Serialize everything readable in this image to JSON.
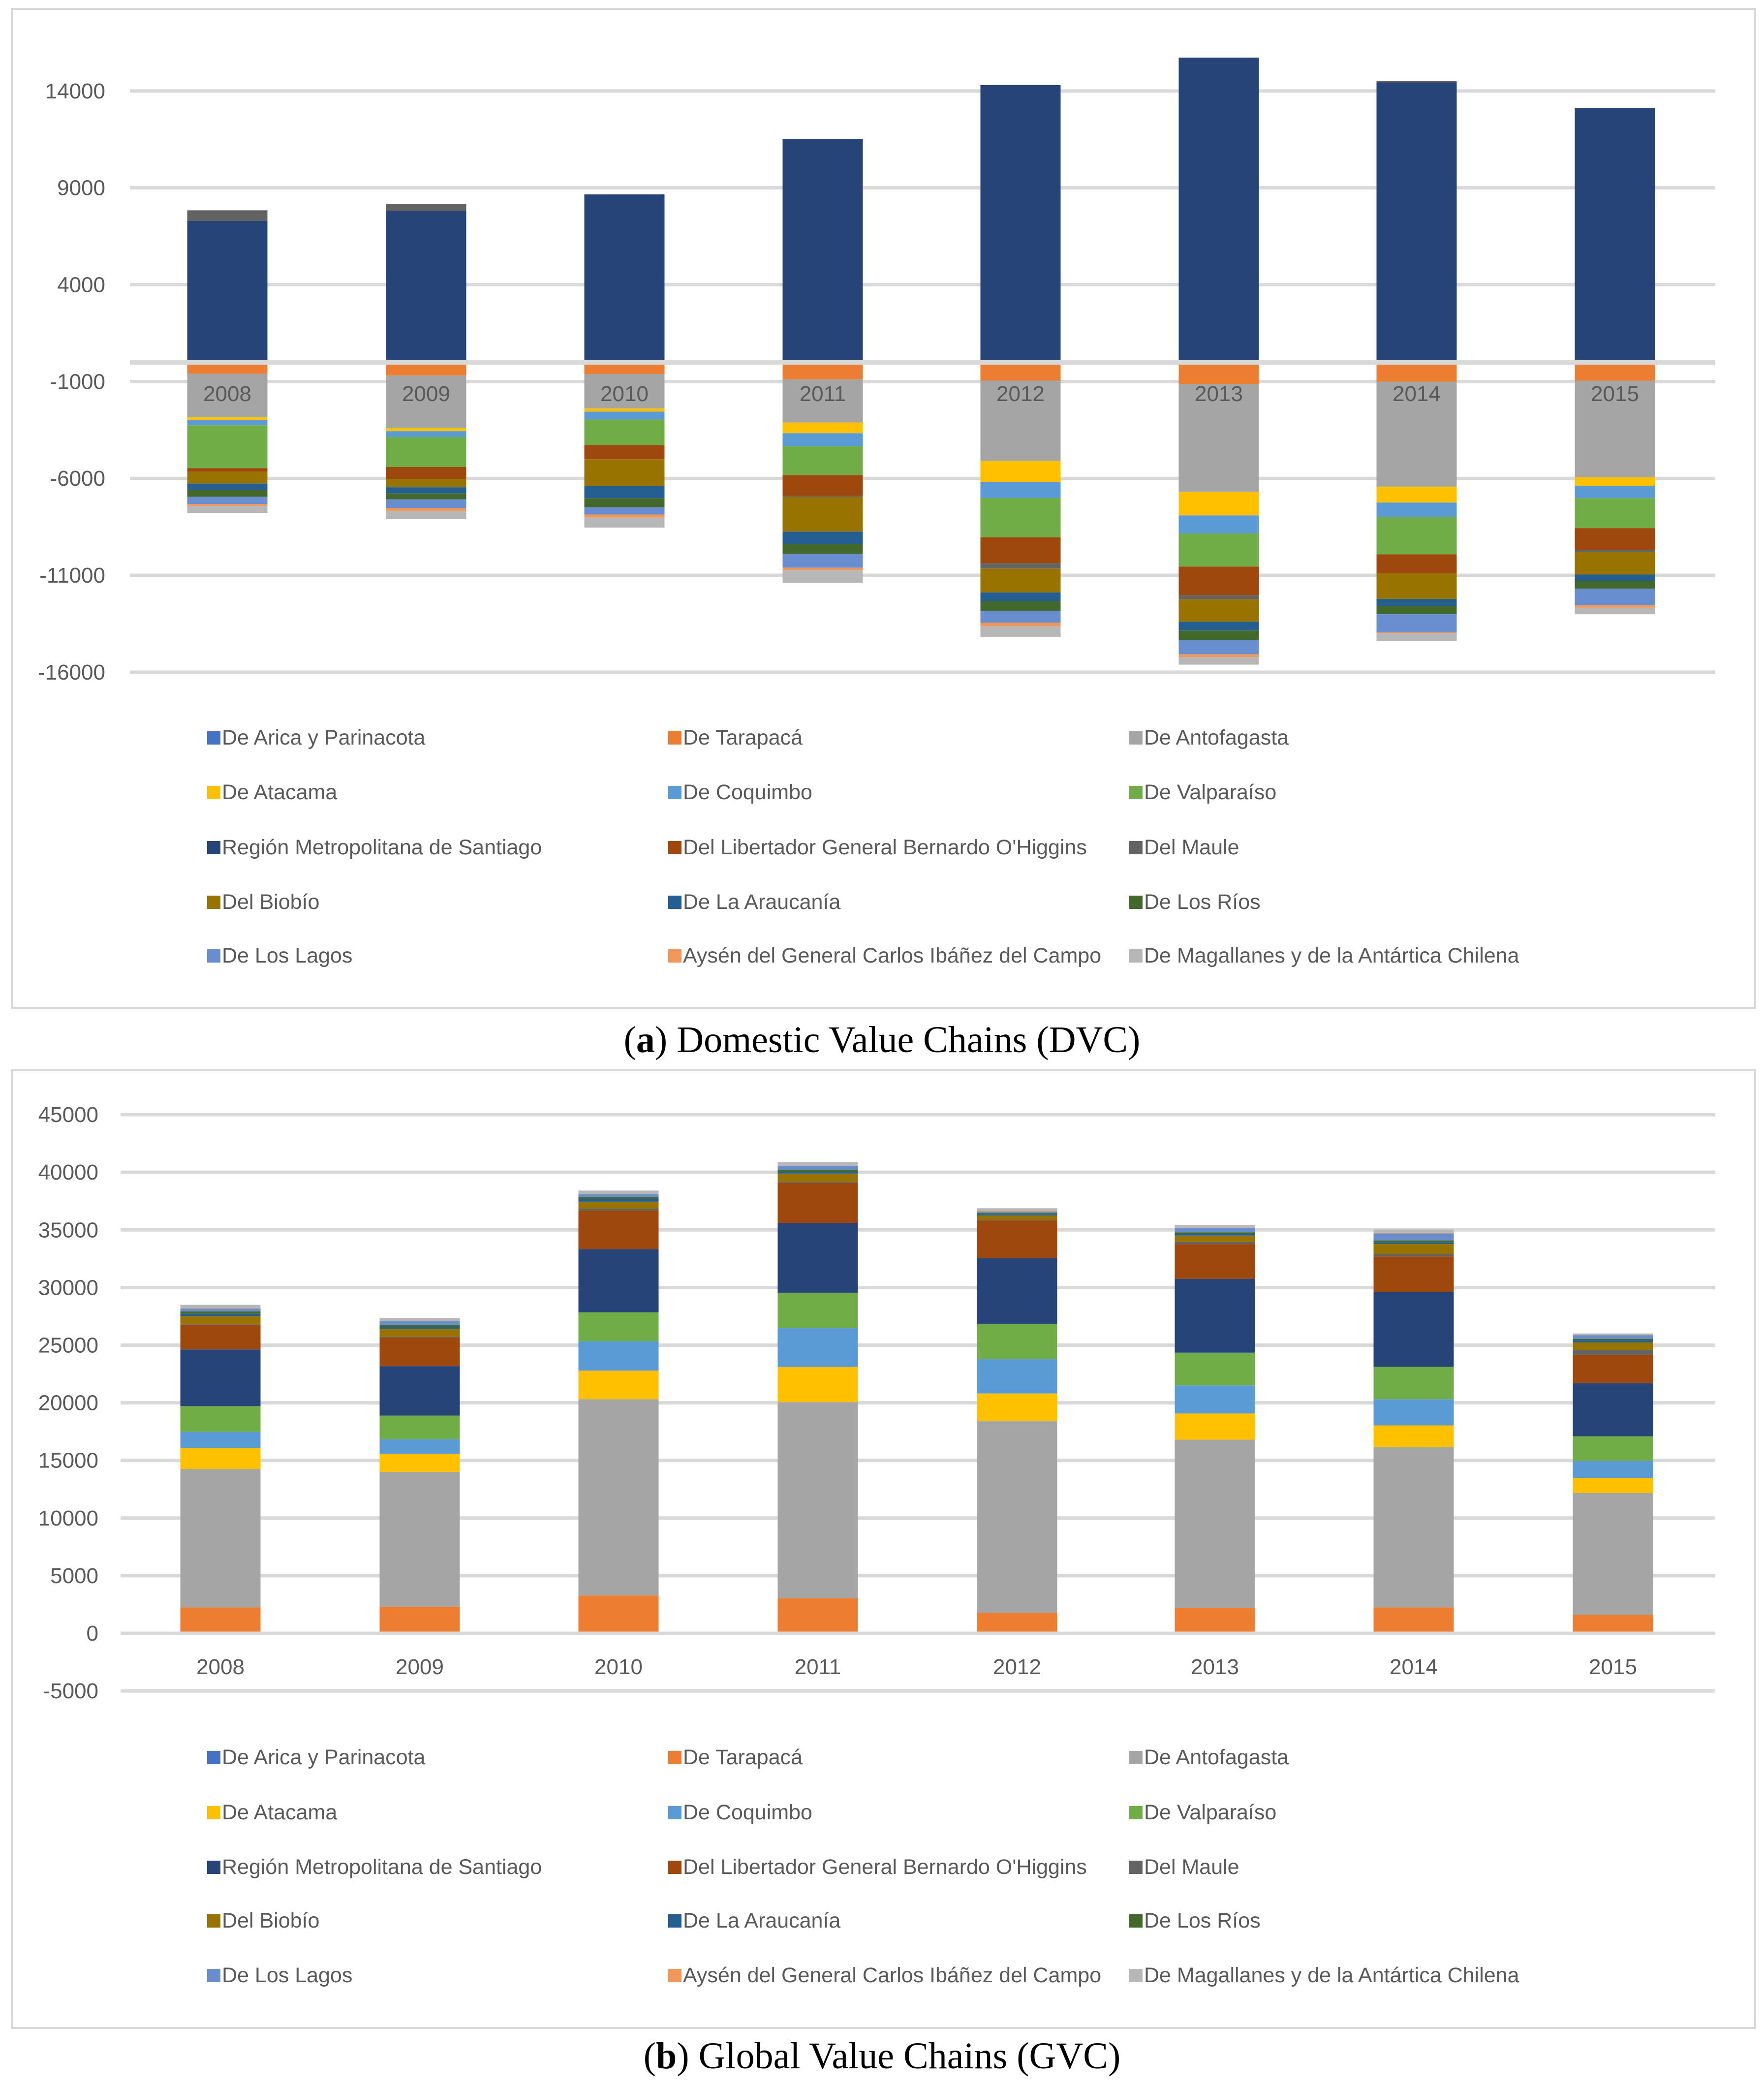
{
  "series_names": [
    "De Arica y Parinacota",
    "De Tarapacá",
    "De Antofagasta",
    "De Atacama",
    "De Coquimbo",
    "De Valparaíso",
    "Región Metropolitana de Santiago",
    "Del Libertador General Bernardo O'Higgins",
    "Del Maule",
    "Del Biobío",
    "De La Araucanía",
    "De Los Ríos",
    "De Los Lagos",
    "Aysén del General Carlos Ibáñez del Campo",
    "De Magallanes y de la Antártica Chilena"
  ],
  "series_colors": [
    "#4472C4",
    "#ED7D31",
    "#A5A5A5",
    "#FFC000",
    "#5B9BD5",
    "#70AD47",
    "#264478",
    "#9E480E",
    "#636363",
    "#997300",
    "#255E91",
    "#43682B",
    "#698ED0",
    "#F1975A",
    "#B7B7B7"
  ],
  "chart_data": [
    {
      "type": "bar",
      "stacked": true,
      "caption_label": "a",
      "caption_text": "Domestic Value Chains (DVC)",
      "categories": [
        "2008",
        "2009",
        "2010",
        "2011",
        "2012",
        "2013",
        "2014",
        "2015"
      ],
      "yticks": [
        14000,
        9000,
        4000,
        -1000,
        -6000,
        -11000,
        -16000
      ],
      "ylim": [
        -16000,
        14000
      ],
      "grid": true,
      "legend_position": "bottom",
      "series": [
        {
          "name": "De Arica y Parinacota",
          "values": [
            -100,
            -30,
            -90,
            -110,
            -110,
            -90,
            -45,
            -45
          ]
        },
        {
          "name": "De Tarapacá",
          "values": [
            -500,
            -660,
            -520,
            -775,
            -840,
            -1050,
            -960,
            -910
          ]
        },
        {
          "name": "De Antofagasta",
          "values": [
            -2250,
            -2710,
            -1780,
            -2230,
            -4150,
            -5560,
            -5420,
            -4990
          ]
        },
        {
          "name": "De Atacama",
          "values": [
            -140,
            -160,
            -160,
            -550,
            -1090,
            -1210,
            -820,
            -430
          ]
        },
        {
          "name": "De Coquimbo",
          "values": [
            -270,
            -300,
            -410,
            -680,
            -820,
            -930,
            -730,
            -640
          ]
        },
        {
          "name": "De Valparaíso",
          "values": [
            -2210,
            -1550,
            -1320,
            -1480,
            -2030,
            -1710,
            -1940,
            -1550
          ]
        },
        {
          "name": "Región Metropolitana de Santiago",
          "values": [
            7290,
            7810,
            8660,
            11530,
            14300,
            15720,
            14440,
            13120
          ]
        },
        {
          "name": "Del Libertador General Bernardo O'Higgins",
          "values": [
            -180,
            -615,
            -730,
            -1070,
            -1340,
            -1480,
            -980,
            -1120
          ]
        },
        {
          "name": "Del Maule",
          "values": [
            550,
            365,
            0,
            -50,
            -270,
            -205,
            70,
            -115
          ]
        },
        {
          "name": "Del Biobío",
          "values": [
            -615,
            -430,
            -1390,
            -1800,
            -1230,
            -1160,
            -1320,
            -1160
          ]
        },
        {
          "name": "De La Araucanía",
          "values": [
            -320,
            -320,
            -615,
            -640,
            -455,
            -455,
            -365,
            -340
          ]
        },
        {
          "name": "De Los Ríos",
          "values": [
            -365,
            -300,
            -480,
            -520,
            -500,
            -480,
            -430,
            -390
          ]
        },
        {
          "name": "De Los Lagos",
          "values": [
            -365,
            -455,
            -365,
            -705,
            -615,
            -750,
            -935,
            -840
          ]
        },
        {
          "name": "Aysén del General Carlos Ibáñez del Campo",
          "values": [
            -110,
            -140,
            -160,
            -140,
            -180,
            -140,
            -45,
            -140
          ]
        },
        {
          "name": "De Magallanes y de la Antártica Chilena",
          "values": [
            -365,
            -430,
            -520,
            -640,
            -570,
            -390,
            -390,
            -340
          ]
        }
      ]
    },
    {
      "type": "bar",
      "stacked": true,
      "caption_label": "b",
      "caption_text": "Global Value Chains (GVC)",
      "categories": [
        "2008",
        "2009",
        "2010",
        "2011",
        "2012",
        "2013",
        "2014",
        "2015"
      ],
      "yticks": [
        45000,
        40000,
        35000,
        30000,
        25000,
        20000,
        15000,
        10000,
        5000,
        0,
        -5000
      ],
      "ylim": [
        -5000,
        45000
      ],
      "grid": true,
      "legend_position": "bottom",
      "series": [
        {
          "name": "De Arica y Parinacota",
          "values": [
            20,
            20,
            20,
            20,
            20,
            20,
            20,
            20
          ]
        },
        {
          "name": "De Tarapacá",
          "values": [
            2230,
            2300,
            3260,
            3010,
            1770,
            2160,
            2230,
            1560
          ]
        },
        {
          "name": "De Antofagasta",
          "values": [
            12010,
            11690,
            17030,
            17030,
            16610,
            14620,
            13920,
            10590
          ]
        },
        {
          "name": "De Atacama",
          "values": [
            1800,
            1560,
            2480,
            3050,
            2410,
            2270,
            1870,
            1310
          ]
        },
        {
          "name": "De Coquimbo",
          "values": [
            1420,
            1270,
            2550,
            3360,
            2970,
            2440,
            2270,
            1480
          ]
        },
        {
          "name": "De Valparaíso",
          "values": [
            2230,
            2050,
            2510,
            3080,
            3080,
            2840,
            2800,
            2130
          ]
        },
        {
          "name": "Región Metropolitana de Santiago",
          "values": [
            4920,
            4290,
            5490,
            6060,
            5700,
            6410,
            6510,
            4600
          ]
        },
        {
          "name": "Del Libertador General Bernardo O'Higgins",
          "values": [
            2130,
            2480,
            3330,
            3470,
            3260,
            3010,
            3080,
            2480
          ]
        },
        {
          "name": "Del Maule",
          "values": [
            50,
            70,
            180,
            100,
            70,
            180,
            210,
            390
          ]
        },
        {
          "name": "Del Biobío",
          "values": [
            700,
            670,
            600,
            710,
            350,
            560,
            860,
            670
          ]
        },
        {
          "name": "De La Araucanía",
          "values": [
            210,
            180,
            210,
            140,
            110,
            140,
            140,
            180
          ]
        },
        {
          "name": "De Los Ríos",
          "values": [
            210,
            180,
            210,
            180,
            110,
            140,
            180,
            140
          ]
        },
        {
          "name": "De Los Lagos",
          "values": [
            250,
            310,
            220,
            320,
            140,
            360,
            600,
            320
          ]
        },
        {
          "name": "Aysén del General Carlos Ibáñez del Campo",
          "values": [
            35,
            35,
            35,
            35,
            70,
            35,
            70,
            35
          ]
        },
        {
          "name": "De Magallanes y de la Antártica Chilena",
          "values": [
            290,
            250,
            290,
            320,
            210,
            250,
            280,
            110
          ]
        }
      ]
    }
  ]
}
